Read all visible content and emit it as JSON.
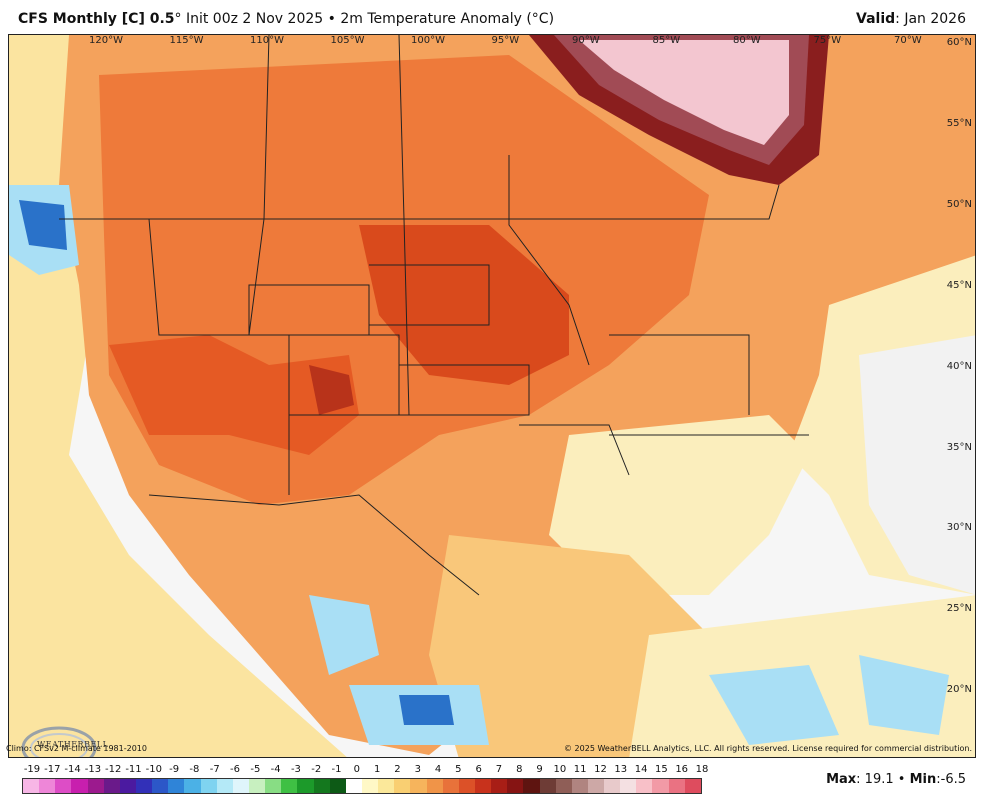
{
  "header": {
    "model": "CFS Monthly [C] 0.5",
    "degree_symbol": "°",
    "init_text": "Init 00z 2 Nov 2025",
    "bullet": "•",
    "field_text": "2m Temperature Anomaly (°C)",
    "valid_label": "Valid",
    "valid_value": ": Jan 2026"
  },
  "map": {
    "longitude_labels": [
      "120°W",
      "115°W",
      "110°W",
      "105°W",
      "100°W",
      "95°W",
      "90°W",
      "85°W",
      "80°W",
      "75°W",
      "70°W"
    ],
    "latitude_labels": [
      "60°N",
      "55°N",
      "50°N",
      "45°N",
      "40°N",
      "35°N",
      "30°N",
      "25°N",
      "20°N"
    ],
    "colors": {
      "land_base": "#f4a25c",
      "strong_warm": "#d94a1c",
      "moderate_warm": "#ee7a3a",
      "mild_warm": "#f9c77a",
      "near_normal": "#fbeebd",
      "cool": "#a9dff5",
      "cold": "#2a72c9",
      "hot_core": "#8a1e1e",
      "extreme_core": "#f3c6d0"
    }
  },
  "footer": {
    "climo": "Climo: CFSv2 M-climate 1981-2010",
    "copyright": "© 2025 WeatherBELL Analytics, LLC. All rights reserved. License required for commercial distribution.",
    "logo_text": "WEATHERBELL"
  },
  "legend": {
    "ticks": [
      "-19",
      "-17",
      "-14",
      "-13",
      "-12",
      "-11",
      "-10",
      "-9",
      "-8",
      "-7",
      "-6",
      "-5",
      "-4",
      "-3",
      "-2",
      "-1",
      "0",
      "1",
      "2",
      "3",
      "4",
      "5",
      "6",
      "7",
      "8",
      "9",
      "10",
      "11",
      "12",
      "13",
      "14",
      "15",
      "16",
      "18"
    ],
    "colors": [
      "#f7b6e6",
      "#ee86d8",
      "#dd4dc6",
      "#c81fae",
      "#9c1a8e",
      "#6a1a8a",
      "#4b1aa0",
      "#3230b8",
      "#2c57c8",
      "#2f84d8",
      "#4bb1e6",
      "#7fd3f0",
      "#b4e9f7",
      "#dff5fb",
      "#c8f0c0",
      "#88dd84",
      "#3fc044",
      "#1c9a2a",
      "#14781e",
      "#0d5a16",
      "#ffffff",
      "#fff8c6",
      "#fbe89a",
      "#f9cf72",
      "#f6b45c",
      "#f09448",
      "#e8723a",
      "#dc5128",
      "#c8321c",
      "#a81e16",
      "#861413",
      "#5e1410",
      "#6e3c36",
      "#8f5e57",
      "#b08480",
      "#cda8a6",
      "#e8cacb",
      "#f4e0e2",
      "#f8c0c8",
      "#f29aa6",
      "#ea7282",
      "#de4c5e"
    ]
  },
  "stats": {
    "max_label": "Max",
    "max_value": ": 19.1",
    "bullet": "•",
    "min_label": "Min",
    "min_value": ":-6.5"
  }
}
